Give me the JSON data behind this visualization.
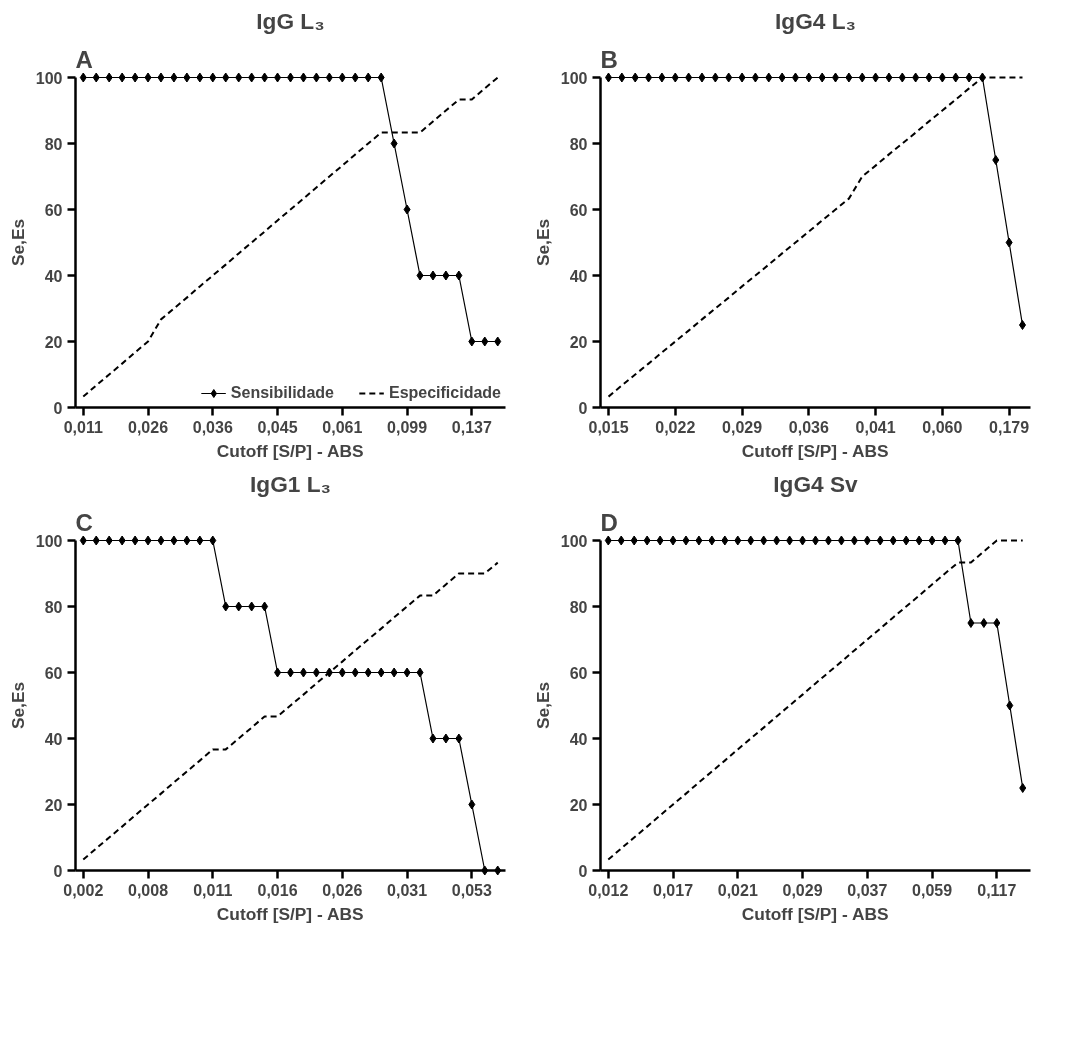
{
  "chart_data": [
    {
      "type": "line",
      "title": "IgG L₃",
      "annotations": [
        "A"
      ],
      "xlabel": "Cutoff [S/P] - ABS",
      "ylabel": "Se,Es",
      "ylim": [
        0,
        100
      ],
      "yticks": [
        0,
        20,
        40,
        60,
        80,
        100
      ],
      "grid": false,
      "legend": "bottom right",
      "categories": [
        "0,011",
        null,
        null,
        null,
        null,
        "0,026",
        null,
        null,
        null,
        null,
        "0,036",
        null,
        null,
        null,
        null,
        "0,045",
        null,
        null,
        null,
        null,
        "0,061",
        null,
        null,
        null,
        null,
        "0,099",
        null,
        null,
        null,
        null,
        "0,137",
        null,
        null
      ],
      "series": [
        {
          "name": "Sensibilidade",
          "color": "#000000",
          "marker": "diamond",
          "line_style": "solid",
          "values": [
            100,
            100,
            100,
            100,
            100,
            100,
            100,
            100,
            100,
            100,
            100,
            100,
            100,
            100,
            100,
            100,
            100,
            100,
            100,
            100,
            100,
            100,
            100,
            100,
            80,
            60,
            40,
            40,
            40,
            40,
            20,
            20,
            20
          ]
        },
        {
          "name": "Especificidade",
          "color": "#000000",
          "marker": "none",
          "line_style": "dashed",
          "values": [
            3.3,
            6.7,
            10,
            13.3,
            16.7,
            20,
            26.7,
            30,
            33.3,
            36.7,
            40,
            43.3,
            46.7,
            50,
            53.3,
            56.7,
            60,
            63.3,
            66.7,
            70,
            73.3,
            76.7,
            80,
            83.3,
            83.3,
            83.3,
            83.3,
            86.7,
            90,
            93.3,
            93.3,
            96.7,
            100
          ]
        }
      ]
    },
    {
      "type": "line",
      "title": "IgG4 L₃",
      "annotations": [
        "B"
      ],
      "xlabel": "Cutoff [S/P] - ABS",
      "ylabel": "Se,Es",
      "ylim": [
        0,
        100
      ],
      "yticks": [
        0,
        20,
        40,
        60,
        80,
        100
      ],
      "grid": false,
      "categories": [
        "0,015",
        null,
        null,
        null,
        null,
        "0,022",
        null,
        null,
        null,
        null,
        "0,029",
        null,
        null,
        null,
        null,
        "0,036",
        null,
        null,
        null,
        null,
        "0,041",
        null,
        null,
        null,
        null,
        "0,060",
        null,
        null,
        null,
        null,
        "0,179",
        null
      ],
      "series": [
        {
          "color": "#000000",
          "marker": "diamond",
          "line_style": "solid",
          "values": [
            100,
            100,
            100,
            100,
            100,
            100,
            100,
            100,
            100,
            100,
            100,
            100,
            100,
            100,
            100,
            100,
            100,
            100,
            100,
            100,
            100,
            100,
            100,
            100,
            100,
            100,
            100,
            100,
            100,
            75,
            50,
            25
          ]
        },
        {
          "color": "#000000",
          "marker": "none",
          "line_style": "dashed",
          "values": [
            3.3,
            6.7,
            10,
            13.3,
            16.7,
            20,
            23.3,
            26.7,
            30,
            33.3,
            36.7,
            40,
            43.3,
            46.7,
            50,
            53.3,
            56.7,
            60,
            63.3,
            70,
            73.3,
            76.7,
            80,
            83.3,
            86.7,
            90,
            93.3,
            96.7,
            100,
            100,
            100,
            100
          ]
        }
      ]
    },
    {
      "type": "line",
      "title": "IgG1 L₃",
      "annotations": [
        "C"
      ],
      "xlabel": "Cutoff [S/P] - ABS",
      "ylabel": "Se,Es",
      "ylim": [
        0,
        100
      ],
      "yticks": [
        0,
        20,
        40,
        60,
        80,
        100
      ],
      "grid": false,
      "categories": [
        "0,002",
        null,
        null,
        null,
        null,
        "0,008",
        null,
        null,
        null,
        null,
        "0,011",
        null,
        null,
        null,
        null,
        "0,016",
        null,
        null,
        null,
        null,
        "0,026",
        null,
        null,
        null,
        null,
        "0,031",
        null,
        null,
        null,
        null,
        "0,053",
        null,
        null
      ],
      "series": [
        {
          "color": "#000000",
          "marker": "diamond",
          "line_style": "solid",
          "values": [
            100,
            100,
            100,
            100,
            100,
            100,
            100,
            100,
            100,
            100,
            100,
            80,
            80,
            80,
            80,
            60,
            60,
            60,
            60,
            60,
            60,
            60,
            60,
            60,
            60,
            60,
            60,
            40,
            40,
            40,
            20,
            0,
            0
          ]
        },
        {
          "color": "#000000",
          "marker": "none",
          "line_style": "dashed",
          "values": [
            3.3,
            6.7,
            10,
            13.3,
            16.7,
            20,
            23.3,
            26.7,
            30,
            33.3,
            36.7,
            36.7,
            40,
            43.3,
            46.7,
            46.7,
            50,
            53.3,
            56.7,
            60,
            63.3,
            66.7,
            70,
            73.3,
            76.7,
            80,
            83.3,
            83.3,
            86.7,
            90,
            90,
            90,
            93.3
          ]
        }
      ]
    },
    {
      "type": "line",
      "title": "IgG4 Sv",
      "annotations": [
        "D"
      ],
      "xlabel": "Cutoff [S/P] - ABS",
      "ylabel": "Se,Es",
      "ylim": [
        0,
        100
      ],
      "yticks": [
        0,
        20,
        40,
        60,
        80,
        100
      ],
      "grid": false,
      "categories": [
        "0,012",
        null,
        null,
        null,
        null,
        "0,017",
        null,
        null,
        null,
        null,
        "0,021",
        null,
        null,
        null,
        null,
        "0,029",
        null,
        null,
        null,
        null,
        "0,037",
        null,
        null,
        null,
        null,
        "0,059",
        null,
        null,
        null,
        null,
        "0,117",
        null,
        null
      ],
      "series": [
        {
          "color": "#000000",
          "marker": "diamond",
          "line_style": "solid",
          "values": [
            100,
            100,
            100,
            100,
            100,
            100,
            100,
            100,
            100,
            100,
            100,
            100,
            100,
            100,
            100,
            100,
            100,
            100,
            100,
            100,
            100,
            100,
            100,
            100,
            100,
            100,
            100,
            100,
            75,
            75,
            75,
            50,
            25
          ]
        },
        {
          "color": "#000000",
          "marker": "none",
          "line_style": "dashed",
          "values": [
            3.3,
            6.7,
            10,
            13.3,
            16.7,
            20,
            23.3,
            26.7,
            30,
            33.3,
            36.7,
            40,
            43.3,
            46.7,
            50,
            53.3,
            56.7,
            60,
            63.3,
            66.7,
            70,
            73.3,
            76.7,
            80,
            83.3,
            86.7,
            90,
            93.3,
            93.3,
            96.7,
            100,
            100,
            100
          ]
        }
      ]
    }
  ]
}
